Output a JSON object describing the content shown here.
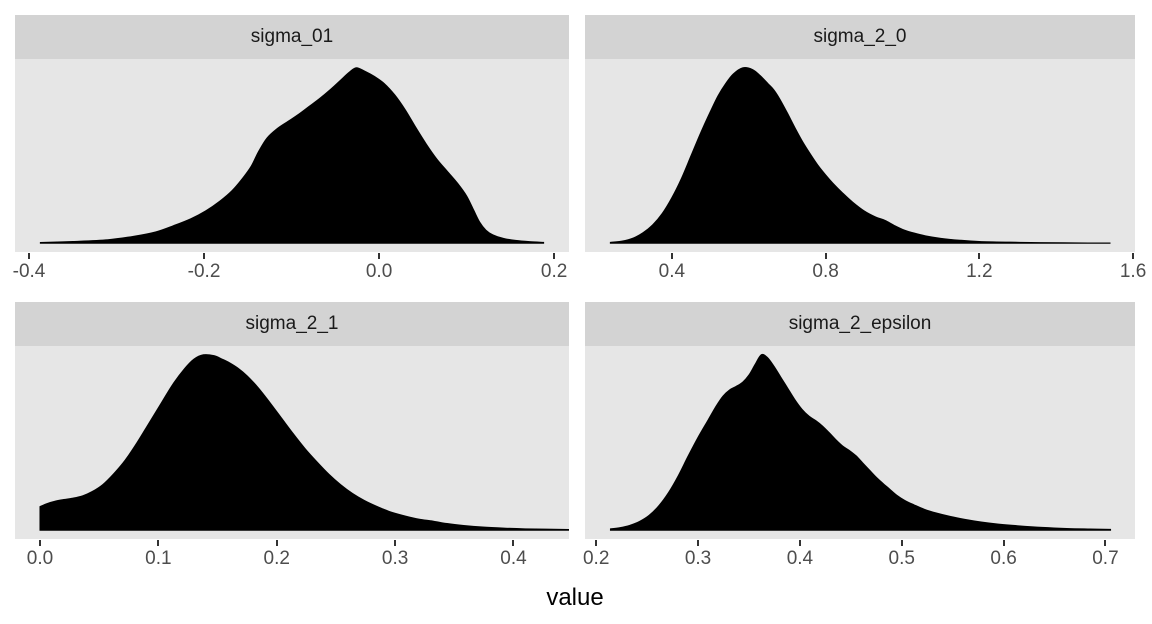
{
  "chart_data": {
    "type": "area",
    "subtype": "density",
    "title": "",
    "xlabel": "value",
    "ylabel": "",
    "legend": "none",
    "grid": false,
    "layout": "2x2-facet-wrap",
    "colors": {
      "background": "#ffffff",
      "strip_bg": "#d3d3d3",
      "strip_text": "#1a1a1a",
      "panel_bg": "#e6e6e6",
      "fill": "#000000",
      "axis_text": "#4d4d4d",
      "tick": "#333333",
      "title_text": "#000000"
    },
    "facets": [
      {
        "title": "sigma_01",
        "x_domain": [
          -0.416,
          0.217
        ],
        "ticks": [
          -0.4,
          -0.2,
          0.0,
          0.2
        ],
        "tick_labels": [
          "-0.4",
          "-0.2",
          "0.0",
          "0.2"
        ],
        "peak_at": -0.026,
        "density": {
          "x": [
            -0.387,
            -0.35,
            -0.31,
            -0.28,
            -0.255,
            -0.235,
            -0.215,
            -0.198,
            -0.182,
            -0.168,
            -0.156,
            -0.146,
            -0.138,
            -0.128,
            -0.116,
            -0.104,
            -0.092,
            -0.08,
            -0.068,
            -0.056,
            -0.045,
            -0.034,
            -0.026,
            -0.016,
            -0.005,
            0.006,
            0.018,
            0.03,
            0.042,
            0.054,
            0.066,
            0.078,
            0.09,
            0.1,
            0.108,
            0.115,
            0.122,
            0.13,
            0.142,
            0.156,
            0.172,
            0.188
          ],
          "y": [
            0.004,
            0.01,
            0.02,
            0.04,
            0.065,
            0.1,
            0.14,
            0.185,
            0.24,
            0.3,
            0.37,
            0.44,
            0.52,
            0.6,
            0.655,
            0.695,
            0.735,
            0.78,
            0.825,
            0.875,
            0.925,
            0.975,
            1.0,
            0.98,
            0.95,
            0.91,
            0.845,
            0.76,
            0.66,
            0.565,
            0.48,
            0.41,
            0.34,
            0.27,
            0.19,
            0.12,
            0.075,
            0.048,
            0.028,
            0.016,
            0.009,
            0.005
          ]
        }
      },
      {
        "title": "sigma_2_0",
        "x_domain": [
          0.174,
          1.605
        ],
        "ticks": [
          0.4,
          0.8,
          1.2,
          1.6
        ],
        "tick_labels": [
          "0.4",
          "0.8",
          "1.2",
          "1.6"
        ],
        "peak_at": 0.585,
        "density": {
          "x": [
            0.24,
            0.27,
            0.3,
            0.325,
            0.35,
            0.375,
            0.4,
            0.425,
            0.45,
            0.475,
            0.5,
            0.52,
            0.54,
            0.56,
            0.585,
            0.61,
            0.63,
            0.65,
            0.665,
            0.68,
            0.7,
            0.72,
            0.74,
            0.76,
            0.78,
            0.8,
            0.82,
            0.845,
            0.87,
            0.9,
            0.93,
            0.955,
            0.98,
            1.005,
            1.03,
            1.06,
            1.1,
            1.15,
            1.2,
            1.28,
            1.36,
            1.45,
            1.54
          ],
          "y": [
            0.005,
            0.012,
            0.03,
            0.06,
            0.105,
            0.17,
            0.26,
            0.37,
            0.5,
            0.63,
            0.75,
            0.84,
            0.91,
            0.965,
            1.0,
            0.99,
            0.955,
            0.91,
            0.875,
            0.825,
            0.745,
            0.66,
            0.58,
            0.51,
            0.445,
            0.39,
            0.34,
            0.285,
            0.235,
            0.185,
            0.15,
            0.13,
            0.1,
            0.075,
            0.058,
            0.042,
            0.028,
            0.017,
            0.01,
            0.006,
            0.0035,
            0.002,
            0.001
          ]
        }
      },
      {
        "title": "sigma_2_1",
        "x_domain": [
          -0.0211,
          0.4469
        ],
        "ticks": [
          0.0,
          0.1,
          0.2,
          0.3,
          0.4
        ],
        "tick_labels": [
          "0.0",
          "0.1",
          "0.2",
          "0.3",
          "0.4"
        ],
        "peak_at": 0.138,
        "left_cut_at_zero": true,
        "density": {
          "x": [
            0.0,
            0.006,
            0.013,
            0.02,
            0.028,
            0.036,
            0.044,
            0.053,
            0.062,
            0.072,
            0.082,
            0.092,
            0.102,
            0.112,
            0.122,
            0.13,
            0.138,
            0.147,
            0.154,
            0.16,
            0.167,
            0.175,
            0.184,
            0.194,
            0.204,
            0.214,
            0.224,
            0.234,
            0.244,
            0.254,
            0.264,
            0.274,
            0.285,
            0.296,
            0.308,
            0.32,
            0.332,
            0.344,
            0.358,
            0.374,
            0.392,
            0.41,
            0.4469
          ],
          "y": [
            0.135,
            0.152,
            0.166,
            0.175,
            0.183,
            0.196,
            0.22,
            0.26,
            0.32,
            0.4,
            0.5,
            0.61,
            0.72,
            0.83,
            0.92,
            0.975,
            1.0,
            0.995,
            0.975,
            0.955,
            0.925,
            0.88,
            0.815,
            0.73,
            0.64,
            0.55,
            0.465,
            0.39,
            0.32,
            0.26,
            0.21,
            0.17,
            0.135,
            0.105,
            0.082,
            0.063,
            0.052,
            0.038,
            0.027,
            0.018,
            0.012,
            0.008,
            0.004
          ]
        }
      },
      {
        "title": "sigma_2_epsilon",
        "x_domain": [
          0.189,
          0.729
        ],
        "ticks": [
          0.2,
          0.3,
          0.4,
          0.5,
          0.6,
          0.7
        ],
        "tick_labels": [
          "0.2",
          "0.3",
          "0.4",
          "0.5",
          "0.6",
          "0.7"
        ],
        "peak_at": 0.362,
        "density": {
          "x": [
            0.214,
            0.2235,
            0.233,
            0.2425,
            0.252,
            0.2615,
            0.271,
            0.2805,
            0.29,
            0.3,
            0.31,
            0.318,
            0.3245,
            0.331,
            0.3375,
            0.344,
            0.35,
            0.356,
            0.362,
            0.368,
            0.3745,
            0.381,
            0.388,
            0.395,
            0.402,
            0.409,
            0.4155,
            0.422,
            0.429,
            0.4355,
            0.442,
            0.4485,
            0.455,
            0.4615,
            0.468,
            0.4745,
            0.481,
            0.488,
            0.495,
            0.503,
            0.512,
            0.522,
            0.534,
            0.548,
            0.562,
            0.578,
            0.595,
            0.615,
            0.638,
            0.662,
            0.685,
            0.705
          ],
          "y": [
            0.008,
            0.015,
            0.028,
            0.05,
            0.085,
            0.14,
            0.215,
            0.31,
            0.42,
            0.53,
            0.63,
            0.71,
            0.765,
            0.8,
            0.82,
            0.845,
            0.885,
            0.945,
            1.0,
            0.985,
            0.935,
            0.875,
            0.81,
            0.745,
            0.69,
            0.65,
            0.625,
            0.595,
            0.555,
            0.515,
            0.48,
            0.455,
            0.425,
            0.385,
            0.345,
            0.305,
            0.27,
            0.235,
            0.2,
            0.17,
            0.145,
            0.12,
            0.098,
            0.078,
            0.062,
            0.047,
            0.035,
            0.025,
            0.016,
            0.01,
            0.007,
            0.005
          ]
        }
      }
    ]
  }
}
